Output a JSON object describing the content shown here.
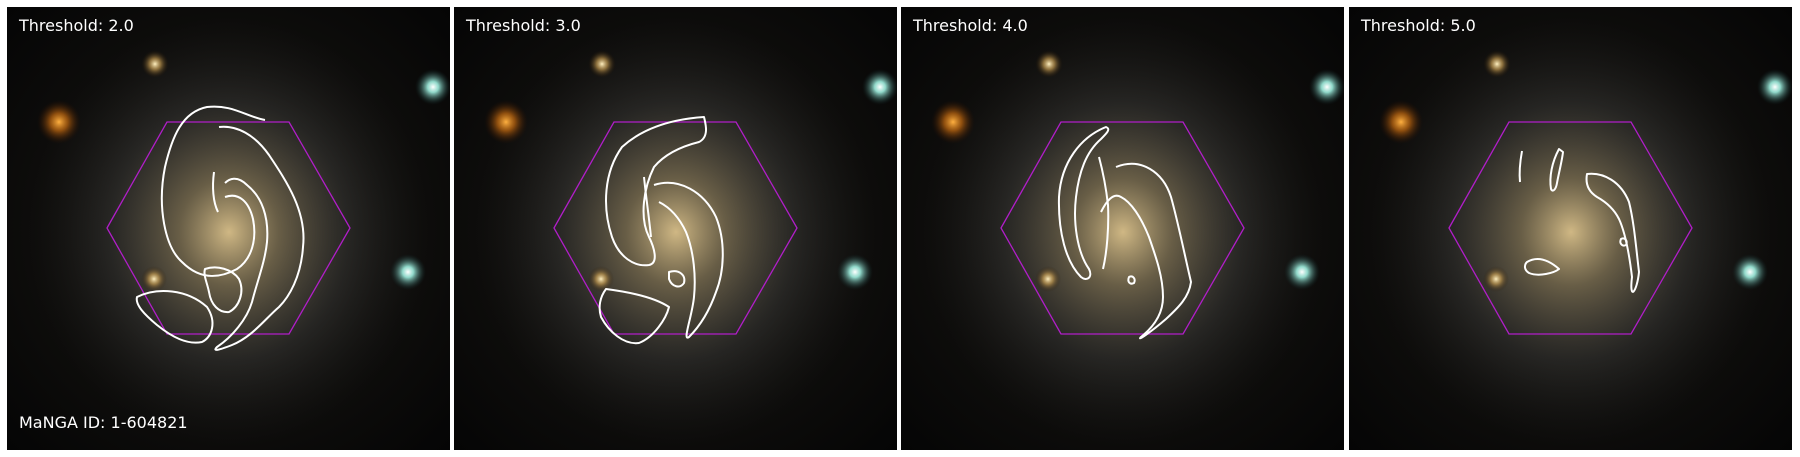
{
  "panels": [
    {
      "threshold_label": "Threshold: 2.0"
    },
    {
      "threshold_label": "Threshold: 3.0"
    },
    {
      "threshold_label": "Threshold: 4.0"
    },
    {
      "threshold_label": "Threshold: 5.0"
    }
  ],
  "manga_id_label": "MaNGA ID: 1-604821",
  "colors": {
    "hexagon": "#b01ec8",
    "contour": "#ffffff",
    "background": "#050505"
  }
}
